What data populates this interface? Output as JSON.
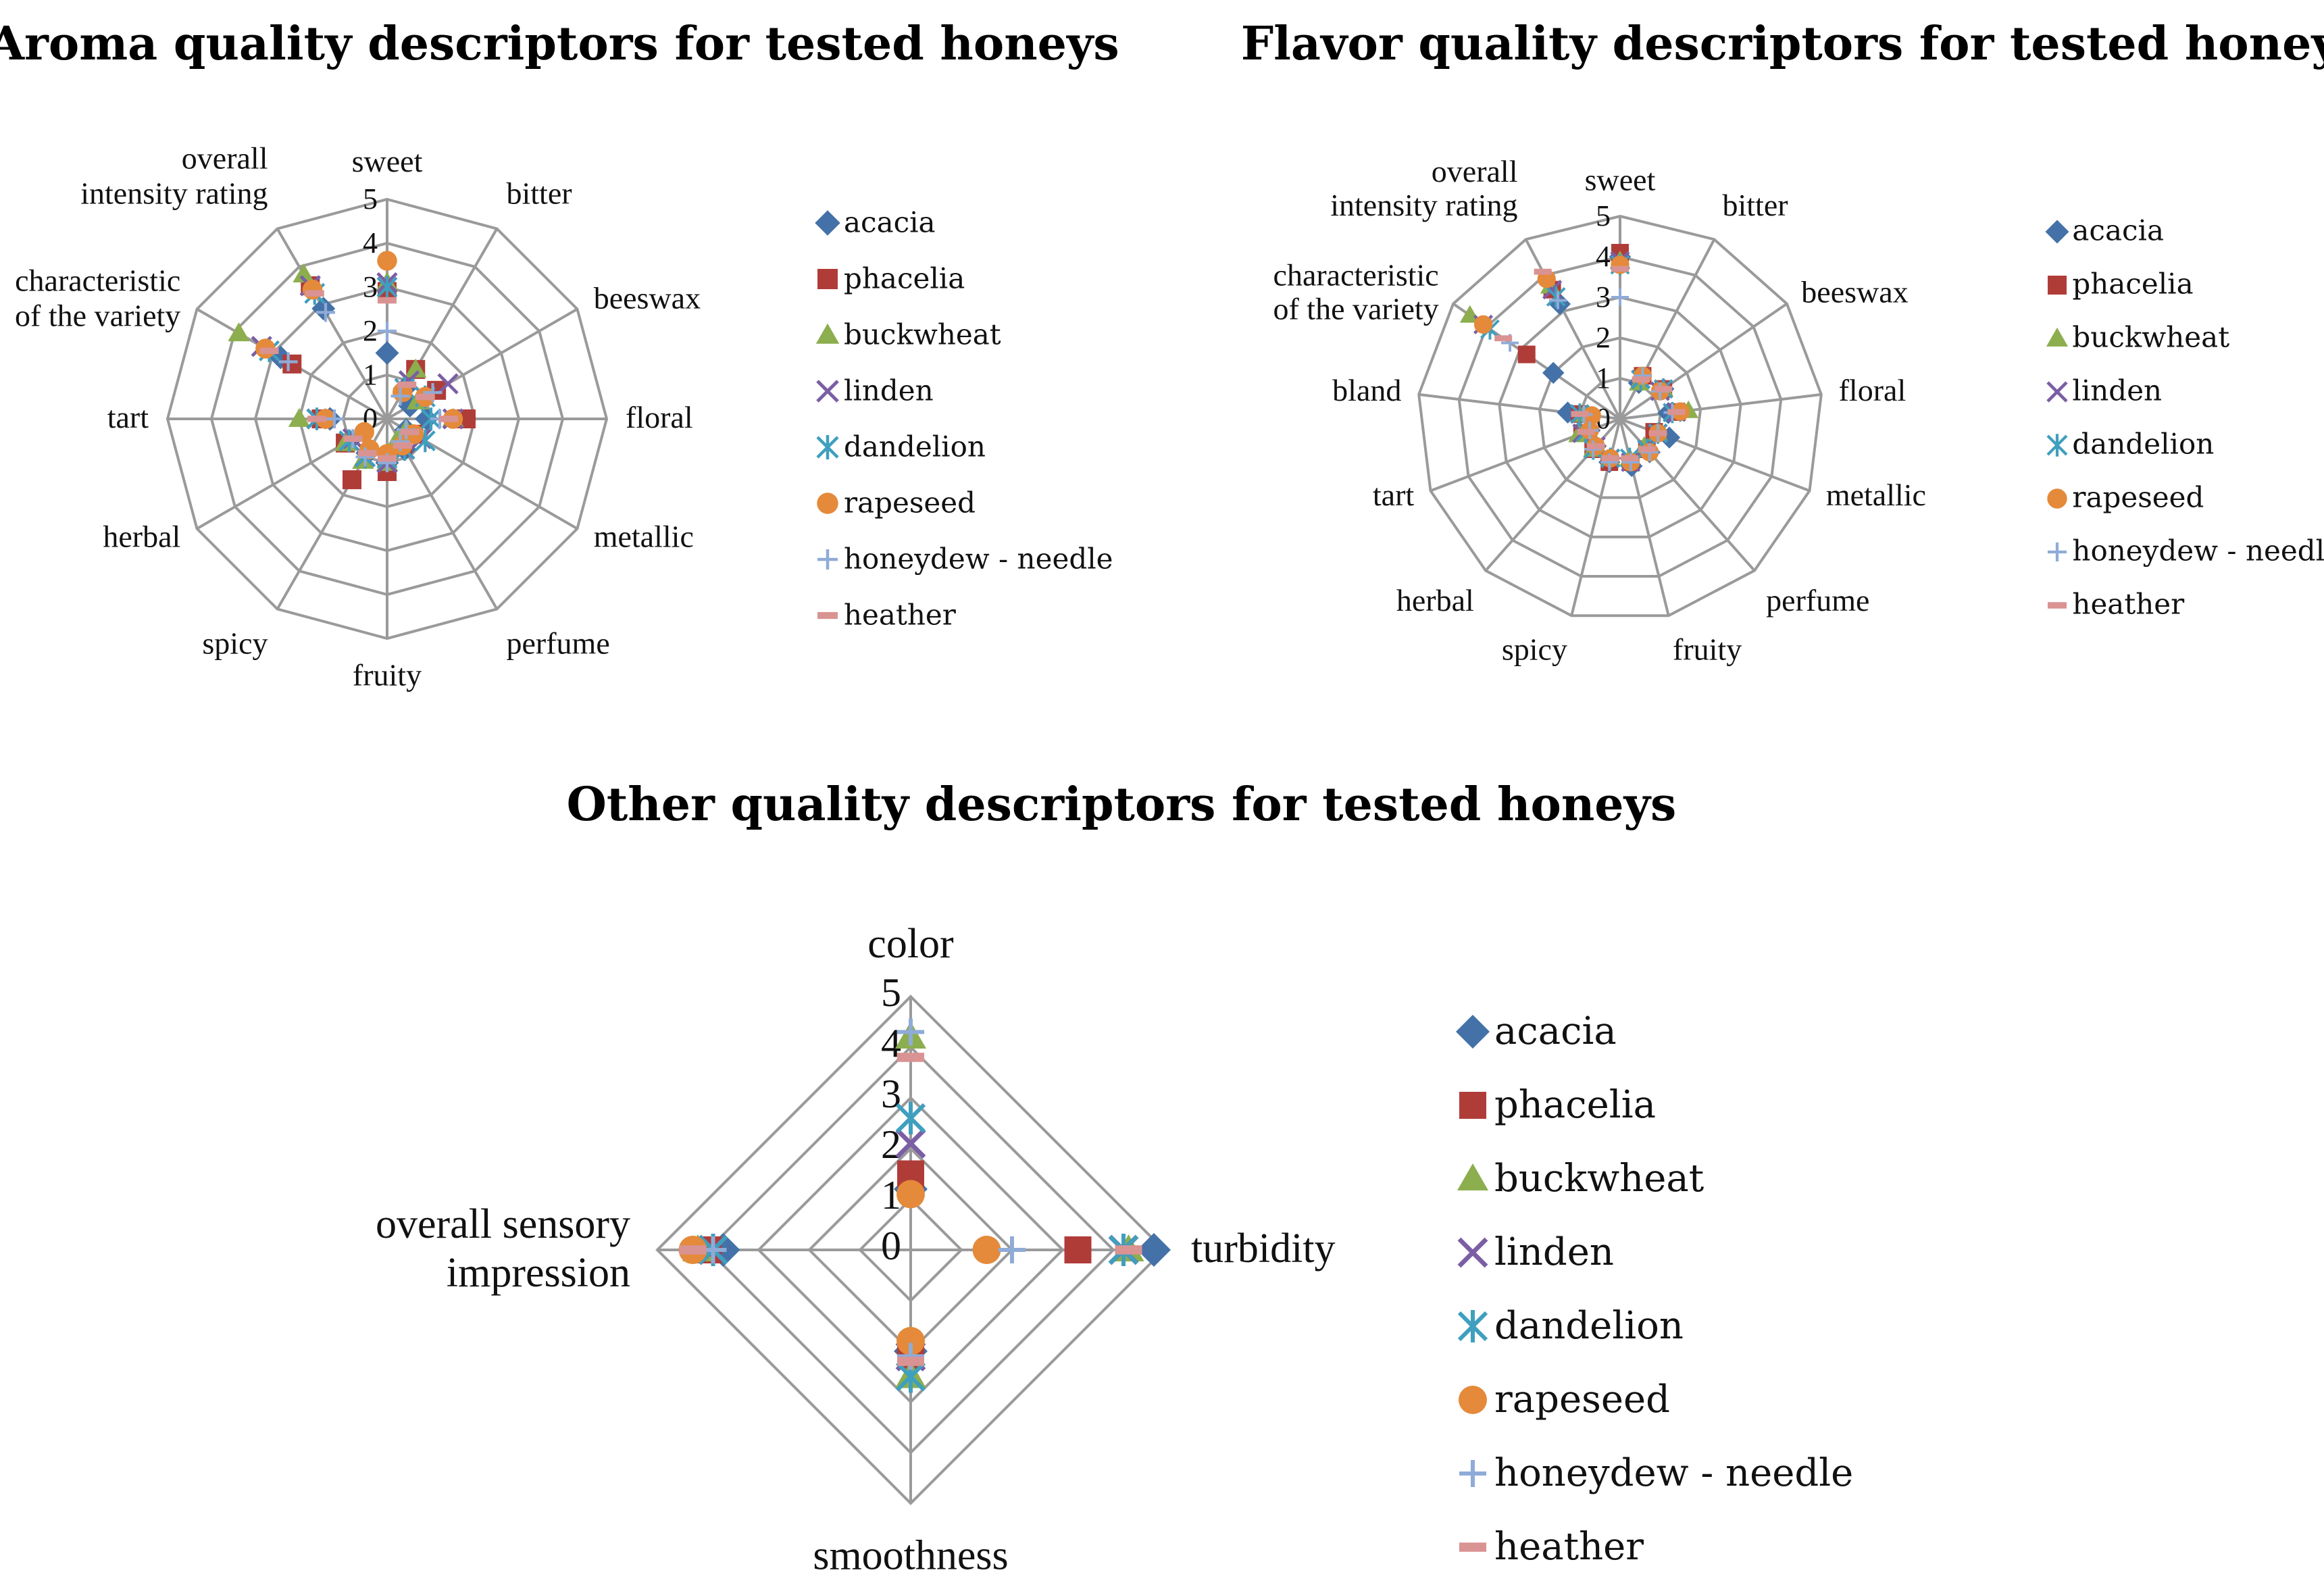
{
  "chart_data": [
    {
      "type": "radar",
      "title": "Aroma quality descriptors for tested honeys",
      "axes": [
        "sweet",
        "bitter",
        "beeswax",
        "floral",
        "metallic",
        "perfume",
        "fruity",
        "spicy",
        "herbal",
        "tart",
        "characteristic of the variety",
        "overall intensity rating"
      ],
      "axis_label_lines": [
        [
          "sweet"
        ],
        [
          "bitter"
        ],
        [
          "beeswax"
        ],
        [
          "floral"
        ],
        [
          "metallic"
        ],
        [
          "perfume"
        ],
        [
          "fruity"
        ],
        [
          "spicy"
        ],
        [
          "herbal"
        ],
        [
          "tart"
        ],
        [
          "characteristic",
          "of the variety"
        ],
        [
          "overall",
          "intensity rating"
        ]
      ],
      "rlim": [
        0,
        5
      ],
      "ticks": [
        0,
        1,
        2,
        3,
        4,
        5
      ],
      "series": [
        {
          "name": "acacia",
          "values": [
            1.5,
            0.8,
            0.6,
            0.9,
            0.5,
            0.8,
            1.0,
            0.9,
            1.0,
            1.3,
            2.8,
            2.9
          ]
        },
        {
          "name": "phacelia",
          "values": [
            2.9,
            1.3,
            1.3,
            1.8,
            0.7,
            0.7,
            1.2,
            1.6,
            1.1,
            1.5,
            2.5,
            3.5
          ]
        },
        {
          "name": "buckwheat",
          "values": [
            3.1,
            1.3,
            0.8,
            1.5,
            0.5,
            0.5,
            1.0,
            1.1,
            1.1,
            2.0,
            3.9,
            3.8
          ]
        },
        {
          "name": "linden",
          "values": [
            3.1,
            1.0,
            1.6,
            1.5,
            0.9,
            0.8,
            1.0,
            1.0,
            0.9,
            1.6,
            3.3,
            3.5
          ]
        },
        {
          "name": "dandelion",
          "values": [
            3.0,
            0.8,
            1.0,
            1.0,
            1.0,
            0.8,
            0.9,
            1.0,
            1.0,
            1.6,
            3.1,
            3.3
          ]
        },
        {
          "name": "rapeseed",
          "values": [
            3.6,
            0.7,
            1.0,
            1.5,
            0.7,
            0.7,
            0.8,
            0.8,
            0.6,
            1.4,
            3.2,
            3.4
          ]
        },
        {
          "name": "honeydew - needle",
          "values": [
            2.0,
            0.6,
            1.2,
            1.2,
            0.5,
            0.6,
            1.0,
            1.0,
            0.9,
            1.2,
            2.6,
            2.8
          ]
        },
        {
          "name": "heather",
          "values": [
            2.7,
            0.9,
            1.0,
            1.4,
            0.6,
            0.7,
            0.9,
            0.9,
            0.9,
            1.6,
            3.1,
            3.3
          ]
        }
      ]
    },
    {
      "type": "radar",
      "title": "Flavor quality descriptors for tested honeys",
      "axes": [
        "sweet",
        "bitter",
        "beeswax",
        "floral",
        "metallic",
        "perfume",
        "fruity",
        "spicy",
        "herbal",
        "tart",
        "bland",
        "characteristic of the variety",
        "overall intensity rating"
      ],
      "axis_label_lines": [
        [
          "sweet"
        ],
        [
          "bitter"
        ],
        [
          "beeswax"
        ],
        [
          "floral"
        ],
        [
          "metallic"
        ],
        [
          "perfume"
        ],
        [
          "fruity"
        ],
        [
          "spicy"
        ],
        [
          "herbal"
        ],
        [
          "tart"
        ],
        [
          "bland"
        ],
        [
          "characteristic",
          "of the variety"
        ],
        [
          "overall",
          "intensity rating"
        ]
      ],
      "rlim": [
        0,
        5
      ],
      "ticks": [
        0,
        1,
        2,
        3,
        4,
        5
      ],
      "series": [
        {
          "name": "acacia",
          "values": [
            4.0,
            1.0,
            1.3,
            1.2,
            1.3,
            1.1,
            1.2,
            1.1,
            0.9,
            0.8,
            1.3,
            2.0,
            3.2
          ]
        },
        {
          "name": "phacelia",
          "values": [
            4.1,
            1.2,
            1.3,
            1.4,
            0.9,
            1.0,
            1.1,
            1.1,
            1.0,
            1.0,
            1.0,
            2.8,
            3.6
          ]
        },
        {
          "name": "buckwheat",
          "values": [
            3.9,
            1.0,
            1.3,
            1.7,
            1.0,
            0.9,
            1.0,
            1.0,
            1.0,
            1.1,
            0.9,
            4.5,
            3.7
          ]
        },
        {
          "name": "linden",
          "values": [
            3.9,
            1.1,
            1.2,
            1.4,
            1.0,
            1.0,
            1.1,
            1.0,
            0.9,
            1.0,
            1.0,
            4.1,
            3.6
          ]
        },
        {
          "name": "dandelion",
          "values": [
            3.8,
            1.1,
            1.3,
            1.3,
            1.0,
            1.0,
            1.0,
            1.0,
            1.0,
            0.9,
            1.0,
            3.9,
            3.4
          ]
        },
        {
          "name": "rapeseed",
          "values": [
            3.8,
            1.2,
            1.2,
            1.5,
            1.0,
            1.1,
            1.1,
            1.0,
            0.9,
            0.8,
            0.7,
            4.1,
            3.9
          ]
        },
        {
          "name": "honeydew - needle",
          "values": [
            3.0,
            1.2,
            1.2,
            1.3,
            1.0,
            1.1,
            1.1,
            1.1,
            1.0,
            0.8,
            0.9,
            3.3,
            3.3
          ]
        },
        {
          "name": "heather",
          "values": [
            3.7,
            1.1,
            1.3,
            1.4,
            1.0,
            1.0,
            1.0,
            1.0,
            0.9,
            0.9,
            1.0,
            3.5,
            4.1
          ]
        }
      ]
    },
    {
      "type": "radar",
      "title": "Other quality descriptors for tested honeys",
      "axes": [
        "color",
        "turbidity",
        "smoothness",
        "overall sensory impression"
      ],
      "axis_label_lines": [
        [
          "color"
        ],
        [
          "turbidity"
        ],
        [
          "smoothness"
        ],
        [
          "overall sensory",
          "impression"
        ]
      ],
      "rlim": [
        0,
        5
      ],
      "ticks": [
        0,
        1,
        2,
        3,
        4,
        5
      ],
      "series": [
        {
          "name": "acacia",
          "values": [
            1.2,
            4.8,
            2.0,
            3.7
          ]
        },
        {
          "name": "phacelia",
          "values": [
            1.5,
            3.3,
            2.1,
            4.0
          ]
        },
        {
          "name": "buckwheat",
          "values": [
            4.2,
            4.3,
            2.5,
            4.2
          ]
        },
        {
          "name": "linden",
          "values": [
            2.1,
            4.2,
            2.1,
            3.9
          ]
        },
        {
          "name": "dandelion",
          "values": [
            2.6,
            4.2,
            2.5,
            3.9
          ]
        },
        {
          "name": "rapeseed",
          "values": [
            1.1,
            1.5,
            1.8,
            4.3
          ]
        },
        {
          "name": "honeydew - needle",
          "values": [
            4.3,
            2.0,
            2.1,
            3.9
          ]
        },
        {
          "name": "heather",
          "values": [
            3.8,
            4.3,
            2.2,
            4.3
          ]
        }
      ]
    }
  ],
  "series_styles": [
    {
      "name": "acacia",
      "marker": "diamond",
      "color": "#4472a8"
    },
    {
      "name": "phacelia",
      "marker": "square",
      "color": "#b03c38"
    },
    {
      "name": "buckwheat",
      "marker": "triangle",
      "color": "#8cae4e"
    },
    {
      "name": "linden",
      "marker": "x",
      "color": "#7b5ea4"
    },
    {
      "name": "dandelion",
      "marker": "star",
      "color": "#3f9fbe"
    },
    {
      "name": "rapeseed",
      "marker": "circle",
      "color": "#e48a3a"
    },
    {
      "name": "honeydew - needle",
      "marker": "plus",
      "color": "#8fabd8"
    },
    {
      "name": "heather",
      "marker": "dash",
      "color": "#d99392"
    }
  ]
}
